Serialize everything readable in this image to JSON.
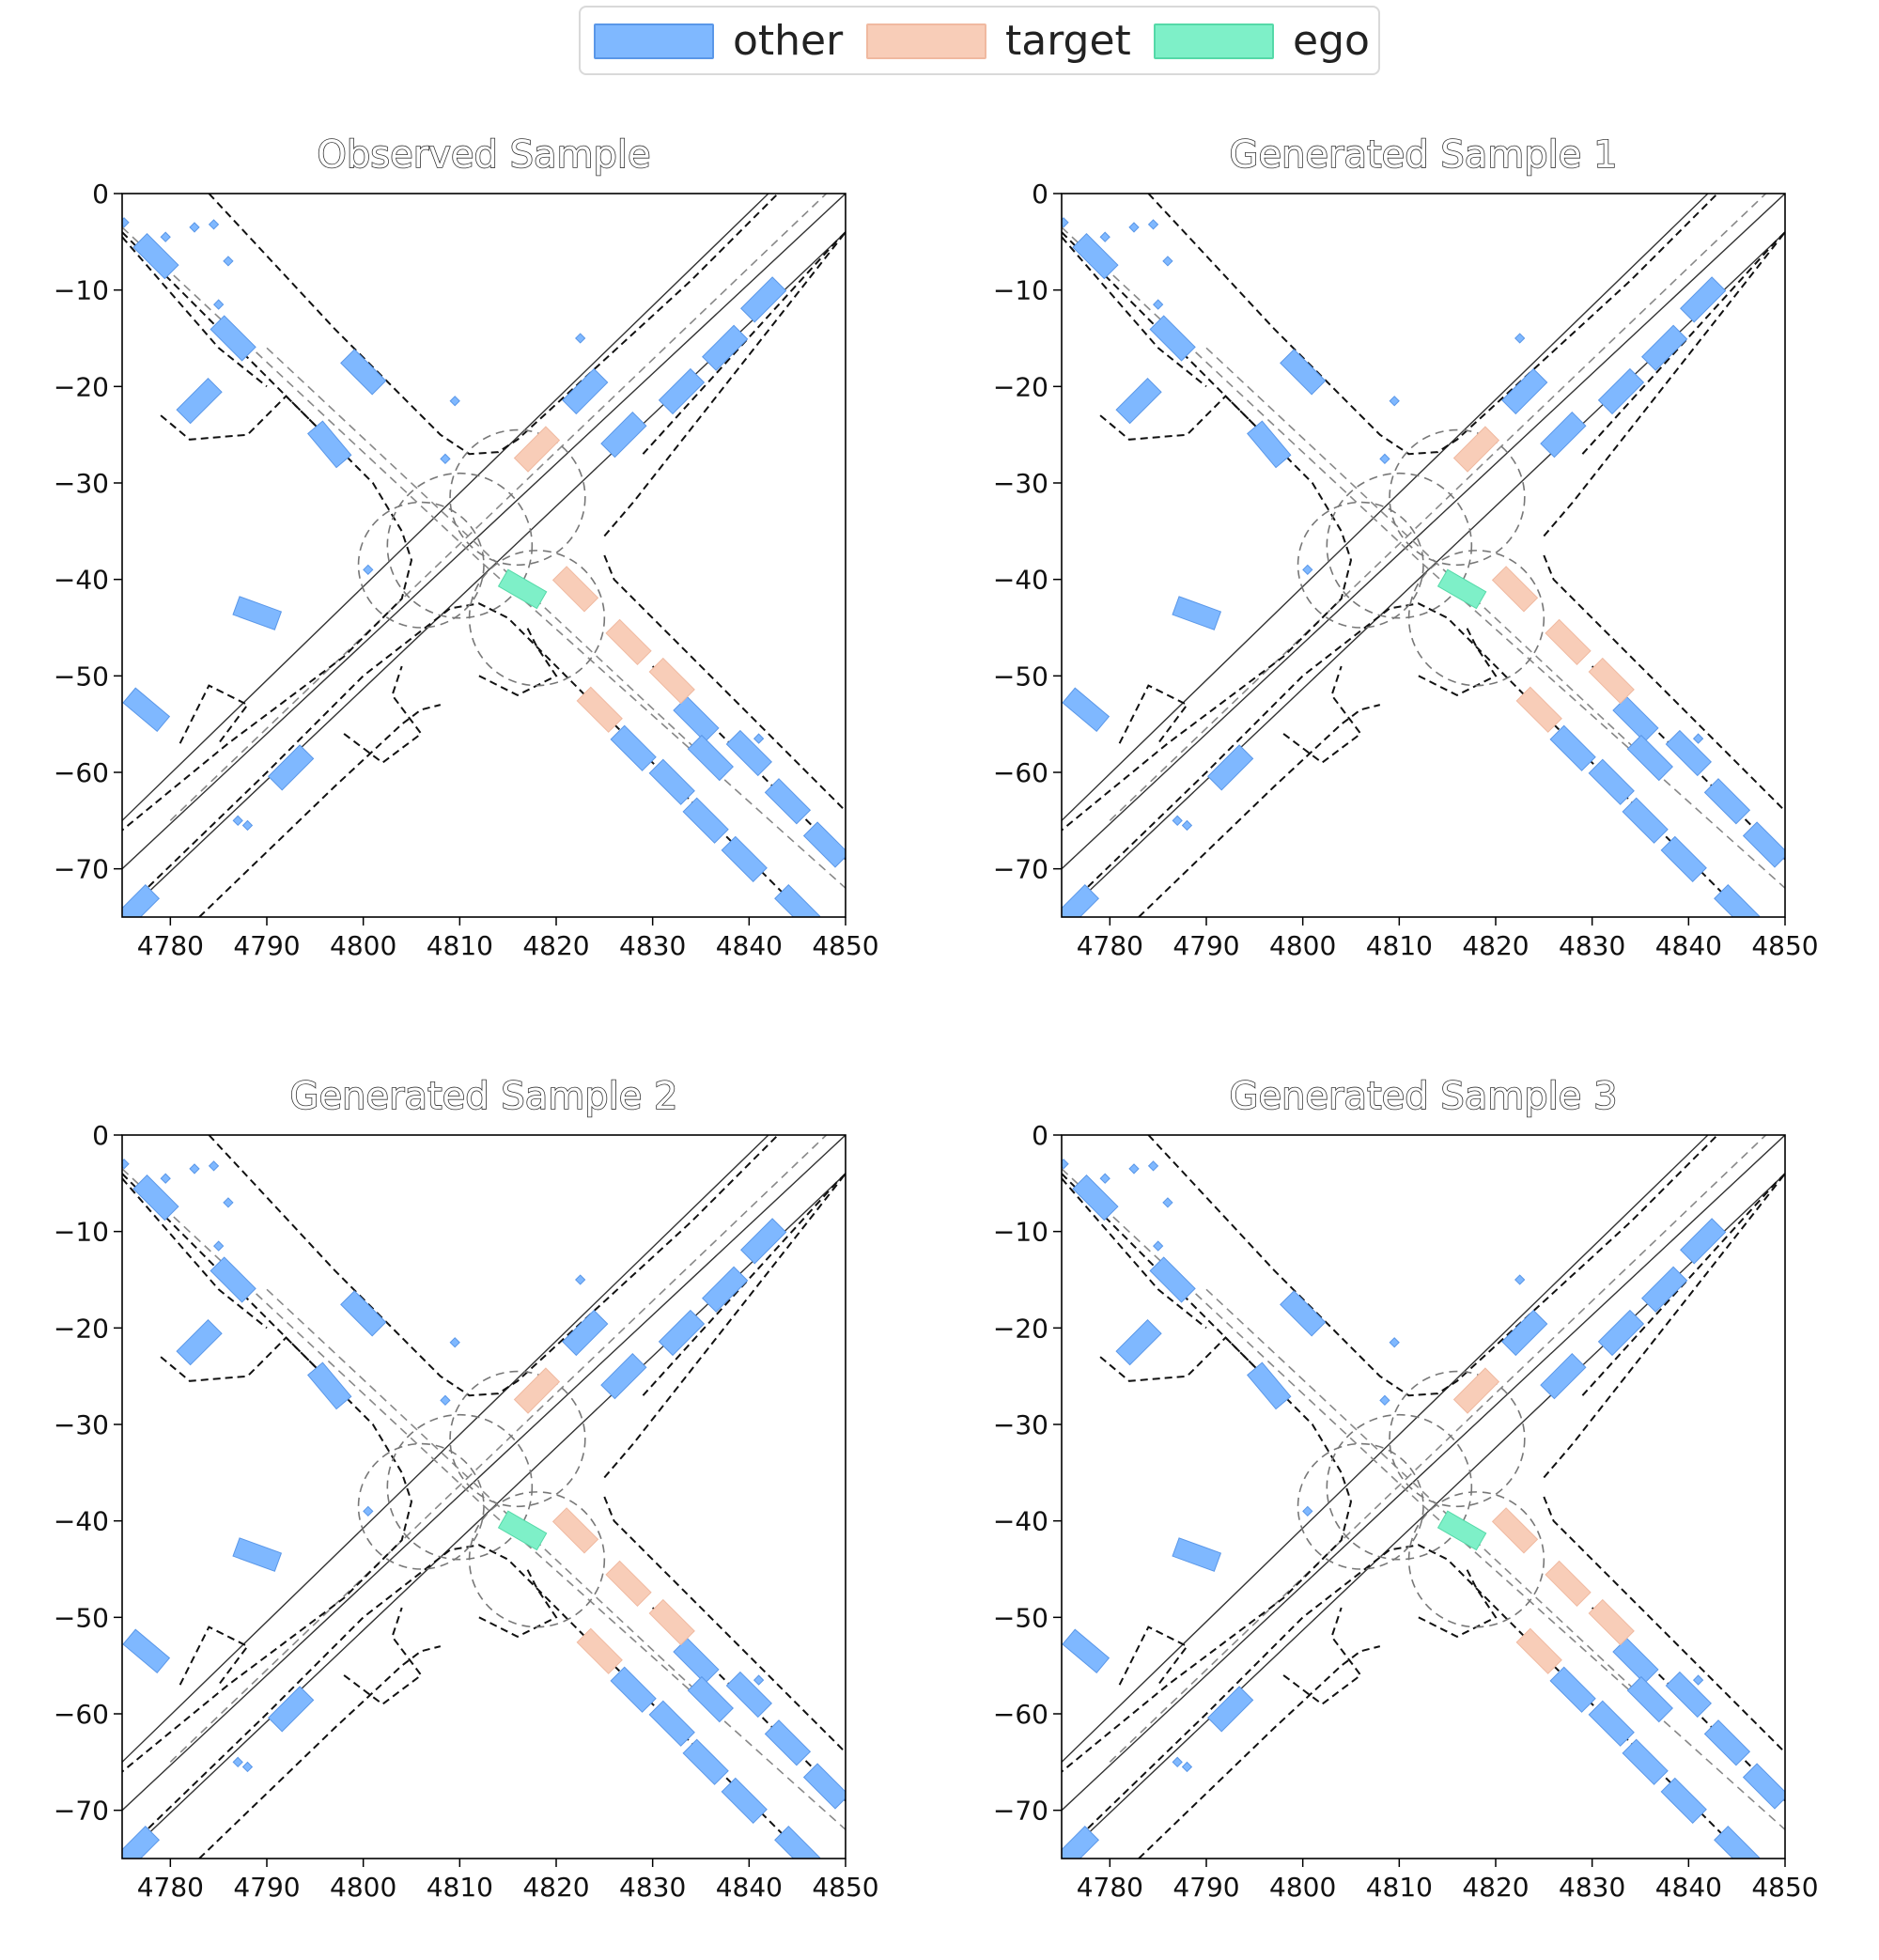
{
  "legend": {
    "items": [
      {
        "label": "other",
        "color": "#7fb8ff",
        "edge": "#5a97e8"
      },
      {
        "label": "target",
        "color": "#f8cdb8",
        "edge": "#f0b9a0"
      },
      {
        "label": "ego",
        "color": "#7ef0c8",
        "edge": "#55d9a8"
      }
    ]
  },
  "chart_data": [
    {
      "type": "scatter",
      "title": "Observed Sample",
      "xlim": [
        4775,
        4850
      ],
      "ylim": [
        -75,
        0
      ],
      "xticks": [
        4780,
        4790,
        4800,
        4810,
        4820,
        4830,
        4840,
        4850
      ],
      "yticks": [
        0,
        -10,
        -20,
        -30,
        -40,
        -50,
        -60,
        -70
      ],
      "grid": false
    },
    {
      "type": "scatter",
      "title": "Generated Sample 1",
      "xlim": [
        4775,
        4850
      ],
      "ylim": [
        -75,
        0
      ],
      "xticks": [
        4780,
        4790,
        4800,
        4810,
        4820,
        4830,
        4840,
        4850
      ],
      "yticks": [
        0,
        -10,
        -20,
        -30,
        -40,
        -50,
        -60,
        -70
      ],
      "grid": false
    },
    {
      "type": "scatter",
      "title": "Generated Sample 2",
      "xlim": [
        4775,
        4850
      ],
      "ylim": [
        -75,
        0
      ],
      "xticks": [
        4780,
        4790,
        4800,
        4810,
        4820,
        4830,
        4840,
        4850
      ],
      "yticks": [
        0,
        -10,
        -20,
        -30,
        -40,
        -50,
        -60,
        -70
      ],
      "grid": false
    },
    {
      "type": "scatter",
      "title": "Generated Sample 3",
      "xlim": [
        4775,
        4850
      ],
      "ylim": [
        -75,
        0
      ],
      "xticks": [
        4780,
        4790,
        4800,
        4810,
        4820,
        4830,
        4840,
        4850
      ],
      "yticks": [
        0,
        -10,
        -20,
        -30,
        -40,
        -50,
        -60,
        -70
      ],
      "grid": false
    }
  ],
  "scene": {
    "vehicles": [
      {
        "cls": "other",
        "x": 4778.5,
        "y": -6.5,
        "len": 4.6,
        "wid": 2.0,
        "ang": -45
      },
      {
        "cls": "other",
        "x": 4786.5,
        "y": -15.0,
        "len": 4.6,
        "wid": 2.0,
        "ang": -45
      },
      {
        "cls": "other",
        "x": 4783.0,
        "y": -21.5,
        "len": 4.6,
        "wid": 2.0,
        "ang": 45
      },
      {
        "cls": "other",
        "x": 4800.0,
        "y": -18.5,
        "len": 4.6,
        "wid": 2.0,
        "ang": -45
      },
      {
        "cls": "other",
        "x": 4796.5,
        "y": -26.0,
        "len": 4.6,
        "wid": 2.0,
        "ang": -50
      },
      {
        "cls": "other",
        "x": 4789.0,
        "y": -43.5,
        "len": 4.6,
        "wid": 2.0,
        "ang": -20
      },
      {
        "cls": "other",
        "x": 4777.5,
        "y": -53.5,
        "len": 4.6,
        "wid": 2.0,
        "ang": -40
      },
      {
        "cls": "other",
        "x": 4792.5,
        "y": -59.5,
        "len": 4.6,
        "wid": 2.0,
        "ang": 45
      },
      {
        "cls": "other",
        "x": 4776.5,
        "y": -74.0,
        "len": 4.6,
        "wid": 2.0,
        "ang": 45
      },
      {
        "cls": "other",
        "x": 4823.0,
        "y": -20.5,
        "len": 4.6,
        "wid": 2.0,
        "ang": 45
      },
      {
        "cls": "other",
        "x": 4827.0,
        "y": -25.0,
        "len": 4.6,
        "wid": 2.0,
        "ang": 45
      },
      {
        "cls": "other",
        "x": 4833.0,
        "y": -20.5,
        "len": 4.6,
        "wid": 2.0,
        "ang": 45
      },
      {
        "cls": "other",
        "x": 4837.5,
        "y": -16.0,
        "len": 4.6,
        "wid": 2.0,
        "ang": 45
      },
      {
        "cls": "other",
        "x": 4841.5,
        "y": -11.0,
        "len": 4.6,
        "wid": 2.0,
        "ang": 45
      },
      {
        "cls": "other",
        "x": 4834.5,
        "y": -54.5,
        "len": 4.6,
        "wid": 2.0,
        "ang": -45
      },
      {
        "cls": "other",
        "x": 4828.0,
        "y": -57.5,
        "len": 4.6,
        "wid": 2.0,
        "ang": -45
      },
      {
        "cls": "other",
        "x": 4832.0,
        "y": -61.0,
        "len": 4.6,
        "wid": 2.0,
        "ang": -45
      },
      {
        "cls": "other",
        "x": 4836.0,
        "y": -58.5,
        "len": 4.6,
        "wid": 2.0,
        "ang": -45
      },
      {
        "cls": "other",
        "x": 4840.0,
        "y": -58.0,
        "len": 4.6,
        "wid": 2.0,
        "ang": -45
      },
      {
        "cls": "other",
        "x": 4835.5,
        "y": -65.0,
        "len": 4.6,
        "wid": 2.0,
        "ang": -45
      },
      {
        "cls": "other",
        "x": 4844.0,
        "y": -63.0,
        "len": 4.6,
        "wid": 2.0,
        "ang": -45
      },
      {
        "cls": "other",
        "x": 4839.5,
        "y": -69.0,
        "len": 4.6,
        "wid": 2.0,
        "ang": -45
      },
      {
        "cls": "other",
        "x": 4848.0,
        "y": -67.5,
        "len": 4.6,
        "wid": 2.0,
        "ang": -45
      },
      {
        "cls": "other",
        "x": 4845.0,
        "y": -74.0,
        "len": 4.6,
        "wid": 2.0,
        "ang": -45
      },
      {
        "cls": "target",
        "x": 4818.0,
        "y": -26.5,
        "len": 4.6,
        "wid": 2.0,
        "ang": 45
      },
      {
        "cls": "target",
        "x": 4822.0,
        "y": -41.0,
        "len": 4.6,
        "wid": 2.0,
        "ang": -45
      },
      {
        "cls": "target",
        "x": 4827.5,
        "y": -46.5,
        "len": 4.6,
        "wid": 2.0,
        "ang": -45
      },
      {
        "cls": "target",
        "x": 4832.0,
        "y": -50.5,
        "len": 4.6,
        "wid": 2.0,
        "ang": -45
      },
      {
        "cls": "target",
        "x": 4824.5,
        "y": -53.5,
        "len": 4.6,
        "wid": 2.0,
        "ang": -45
      },
      {
        "cls": "ego",
        "x": 4816.5,
        "y": -41.0,
        "len": 4.6,
        "wid": 2.0,
        "ang": -30
      }
    ],
    "peds": [
      [
        4775.2,
        -3.0
      ],
      [
        4779.5,
        -4.5
      ],
      [
        4782.5,
        -3.5
      ],
      [
        4784.5,
        -3.2
      ],
      [
        4786.0,
        -7.0
      ],
      [
        4785.0,
        -11.5
      ],
      [
        4800.5,
        -39.0
      ],
      [
        4809.5,
        -21.5
      ],
      [
        4808.5,
        -27.5
      ],
      [
        4822.5,
        -15.0
      ],
      [
        4841.0,
        -56.5
      ],
      [
        4787.0,
        -65.0
      ],
      [
        4788.0,
        -65.5
      ]
    ]
  }
}
